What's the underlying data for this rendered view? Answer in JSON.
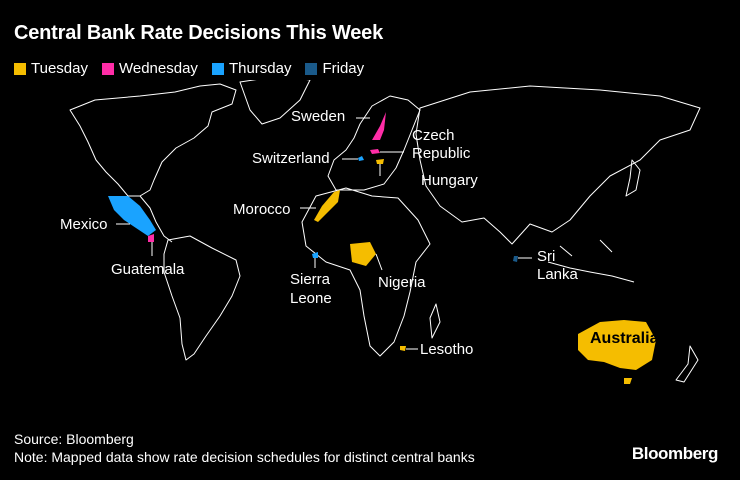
{
  "title": "Central Bank Rate Decisions This Week",
  "legend": [
    {
      "label": "Tuesday",
      "color": "#f5bd00"
    },
    {
      "label": "Wednesday",
      "color": "#ff2da7"
    },
    {
      "label": "Thursday",
      "color": "#1aa3ff"
    },
    {
      "label": "Friday",
      "color": "#1a5a8a"
    }
  ],
  "countries": {
    "sweden": {
      "label": "Sweden",
      "day": "Wednesday"
    },
    "czech": {
      "label_line1": "Czech",
      "label_line2": "Republic",
      "day": "Wednesday"
    },
    "switzerland": {
      "label": "Switzerland",
      "day": "Thursday"
    },
    "hungary": {
      "label": "Hungary",
      "day": "Tuesday"
    },
    "morocco": {
      "label": "Morocco",
      "day": "Tuesday"
    },
    "mexico": {
      "label": "Mexico",
      "day": "Thursday"
    },
    "guatemala": {
      "label": "Guatemala",
      "day": "Wednesday"
    },
    "sierra_leone": {
      "label_line1": "Sierra",
      "label_line2": "Leone",
      "day": "Thursday"
    },
    "nigeria": {
      "label": "Nigeria",
      "day": "Tuesday"
    },
    "sri_lanka": {
      "label_line1": "Sri",
      "label_line2": "Lanka",
      "day": "Friday"
    },
    "lesotho": {
      "label": "Lesotho",
      "day": "Tuesday"
    },
    "australia": {
      "label": "Australia",
      "day": "Tuesday"
    }
  },
  "footer": {
    "source": "Source: Bloomberg",
    "note": "Note: Mapped data show rate decision schedules for distinct central banks"
  },
  "brand": "Bloomberg"
}
